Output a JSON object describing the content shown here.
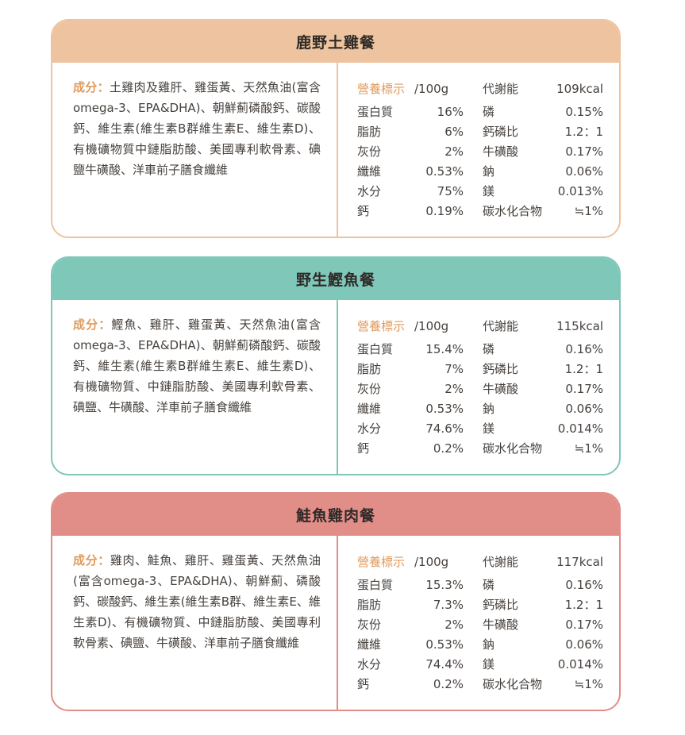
{
  "cards": [
    {
      "title": "鹿野土雞餐",
      "ingredients_label": "成分：",
      "ingredients_text": "土雞肉及雞肝、雞蛋黃、天然魚油(富含omega-3、EPA&DHA)、朝鮮薊磷酸鈣、碳酸鈣、維生素(維生素B群維生素E、維生素D)、有機礦物質中鏈脂肪酸、美國專利軟骨素、碘鹽牛磺酸、洋車前子膳食纖維",
      "nutrition_label": "營養標示",
      "nutrition_unit": "/100g",
      "energy_label": "代謝能",
      "energy_value": "109kcal",
      "rows": [
        {
          "name": "蛋白質",
          "value": "16%",
          "name2": "磷",
          "value2": "0.15%"
        },
        {
          "name": "脂肪",
          "value": "6%",
          "name2": "鈣磷比",
          "value2": "1.2：1"
        },
        {
          "name": "灰份",
          "value": "2%",
          "name2": "牛磺酸",
          "value2": "0.17%"
        },
        {
          "name": "纖維",
          "value": "0.53%",
          "name2": "鈉",
          "value2": "0.06%"
        },
        {
          "name": "水分",
          "value": "75%",
          "name2": "鎂",
          "value2": "0.013%"
        },
        {
          "name": "鈣",
          "value": "0.19%",
          "name2": "碳水化合物",
          "value2": "≒1%"
        }
      ]
    },
    {
      "title": "野生鰹魚餐",
      "ingredients_label": "成分：",
      "ingredients_text": "鰹魚、雞肝、雞蛋黃、天然魚油(富含omega-3、EPA&DHA)、朝鮮薊磷酸鈣、碳酸鈣、維生素(維生素B群維生素E、維生素D)、有機礦物質、中鏈脂肪酸、美國專利軟骨素、碘鹽、牛磺酸、洋車前子膳食纖維",
      "nutrition_label": "營養標示",
      "nutrition_unit": "/100g",
      "energy_label": "代謝能",
      "energy_value": "115kcal",
      "rows": [
        {
          "name": "蛋白質",
          "value": "15.4%",
          "name2": "磷",
          "value2": "0.16%"
        },
        {
          "name": "脂肪",
          "value": "7%",
          "name2": "鈣磷比",
          "value2": "1.2：1"
        },
        {
          "name": "灰份",
          "value": "2%",
          "name2": "牛磺酸",
          "value2": "0.17%"
        },
        {
          "name": "纖維",
          "value": "0.53%",
          "name2": "鈉",
          "value2": "0.06%"
        },
        {
          "name": "水分",
          "value": "74.6%",
          "name2": "鎂",
          "value2": "0.014%"
        },
        {
          "name": "鈣",
          "value": "0.2%",
          "name2": "碳水化合物",
          "value2": "≒1%"
        }
      ]
    },
    {
      "title": "鮭魚雞肉餐",
      "ingredients_label": "成分：",
      "ingredients_text": "雞肉、鮭魚、雞肝、雞蛋黃、天然魚油(富含omega-3、EPA&DHA)、朝鮮薊、磷酸鈣、碳酸鈣、維生素(維生素B群、維生素E、維生素D)、有機礦物質、中鏈脂肪酸、美國專利軟骨素、碘鹽、牛磺酸、洋車前子膳食纖維",
      "nutrition_label": "營養標示",
      "nutrition_unit": "/100g",
      "energy_label": "代謝能",
      "energy_value": "117kcal",
      "rows": [
        {
          "name": "蛋白質",
          "value": "15.3%",
          "name2": "磷",
          "value2": "0.16%"
        },
        {
          "name": "脂肪",
          "value": "7.3%",
          "name2": "鈣磷比",
          "value2": "1.2：1"
        },
        {
          "name": "灰份",
          "value": "2%",
          "name2": "牛磺酸",
          "value2": "0.17%"
        },
        {
          "name": "纖維",
          "value": "0.53%",
          "name2": "鈉",
          "value2": "0.06%"
        },
        {
          "name": "水分",
          "value": "74.4%",
          "name2": "鎂",
          "value2": "0.014%"
        },
        {
          "name": "鈣",
          "value": "0.2%",
          "name2": "碳水化合物",
          "value2": "≒1%"
        }
      ]
    }
  ],
  "colors": {
    "card_1_accent": "#edc49f",
    "card_2_accent": "#7fc7b9",
    "card_3_accent": "#e18d88",
    "label_orange": "#e09b5d"
  }
}
